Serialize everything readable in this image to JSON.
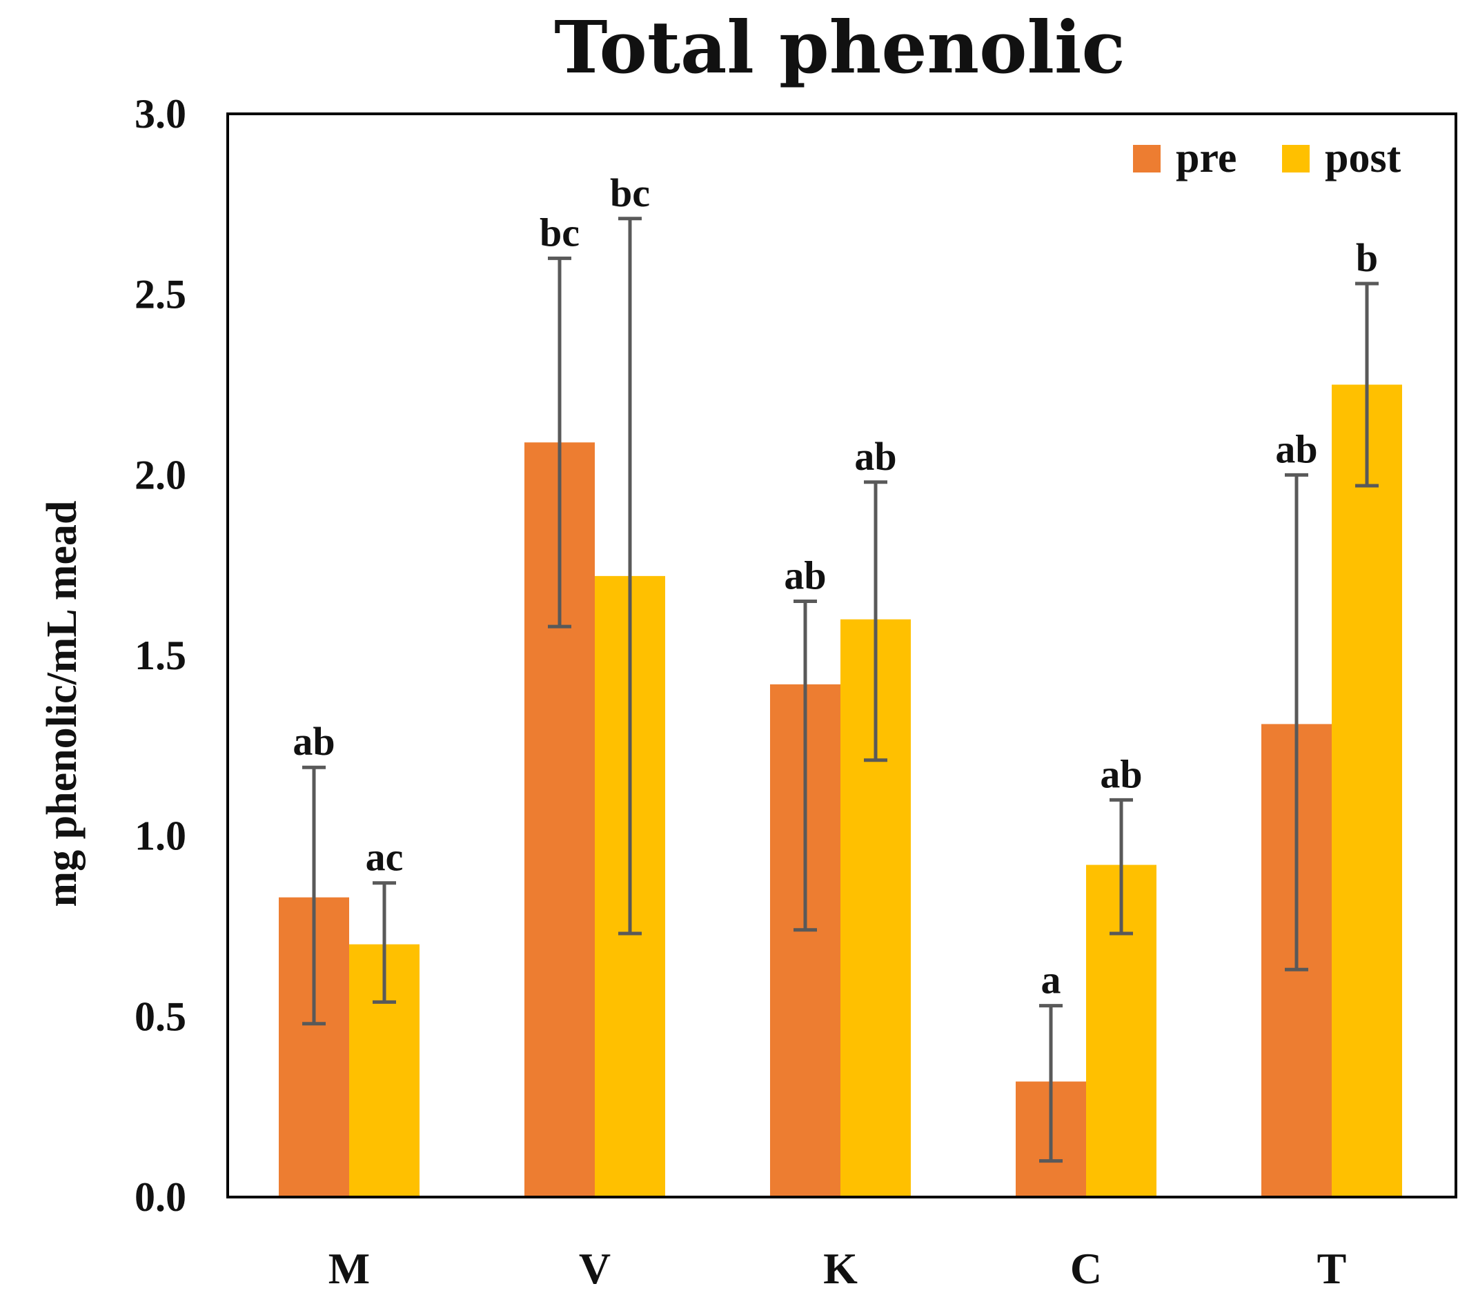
{
  "chart_data": {
    "type": "bar",
    "title": "Total phenolic",
    "xlabel": "",
    "ylabel": "mg phenolic/mL mead",
    "ylim": [
      0,
      3.0
    ],
    "yticks": [
      "0.0",
      "0.5",
      "1.0",
      "1.5",
      "2.0",
      "2.5",
      "3.0"
    ],
    "grid": false,
    "legend_position": "top-right",
    "categories": [
      "M",
      "V",
      "K",
      "C",
      "T"
    ],
    "series": [
      {
        "name": "pre",
        "color": "#ED7D31",
        "values": [
          0.83,
          2.09,
          1.42,
          0.32,
          1.31
        ],
        "error_low": [
          0.48,
          1.58,
          0.74,
          0.1,
          0.63
        ],
        "error_high": [
          1.19,
          2.6,
          1.65,
          0.53,
          2.0
        ],
        "significance": [
          "ab",
          "bc",
          "ab",
          "a",
          "ab"
        ]
      },
      {
        "name": "post",
        "color": "#FFC000",
        "values": [
          0.7,
          1.72,
          1.6,
          0.92,
          2.25
        ],
        "error_low": [
          0.54,
          0.73,
          1.21,
          0.73,
          1.97
        ],
        "error_high": [
          0.87,
          2.71,
          1.98,
          1.1,
          2.53
        ],
        "significance": [
          "ac",
          "bc",
          "ab",
          "ab",
          "b"
        ]
      }
    ],
    "error_bar_color": "#595959"
  }
}
